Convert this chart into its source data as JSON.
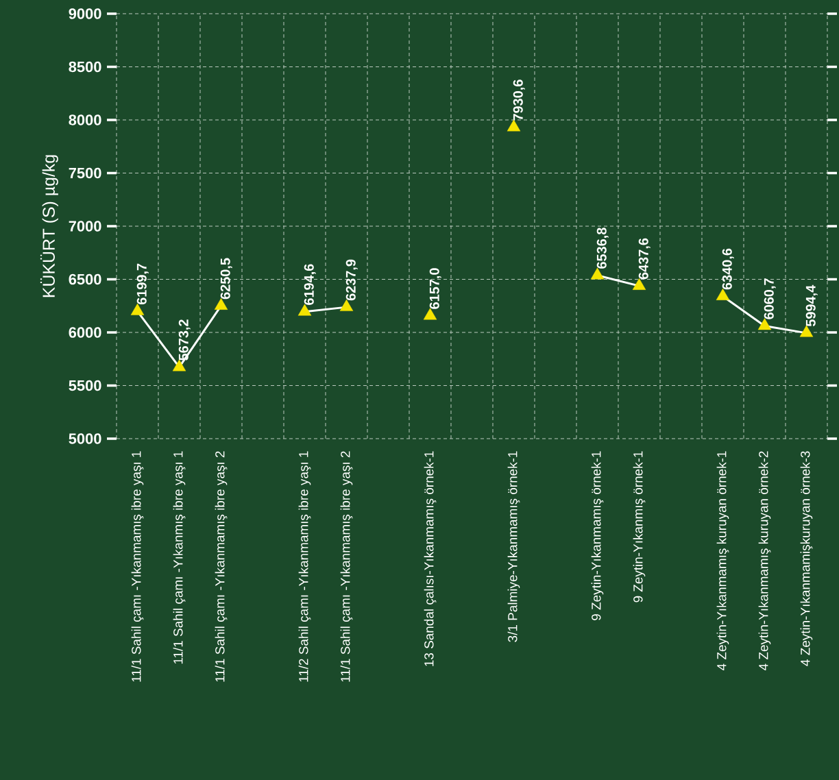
{
  "chart_data": {
    "type": "line",
    "ylabel": "KÜKÜRT (S) µg/kg",
    "categories": [
      "11/1 Sahil çamı -Yıkanmamış ibre yaşı 1",
      "11/1 Sahil çamı -Yıkanmış ibre yaşı 1",
      "11/1 Sahil çamı -Yıkanmamış ibre yaşı 2",
      null,
      "11/2 Sahil çamı -Yıkanmamış ibre yaşı 1",
      "11/1 Sahil çamı -Yıkanmamış ibre yaşı 2",
      null,
      "13 Sandal çalısı-Yıkanmamış örnek-1",
      null,
      "3/1 Palmiye-Yıkanmamış örnek-1",
      null,
      "9 Zeytin-Yıkanmamış örnek-1",
      "9 Zeytin-Yıkanmış örnek-1",
      null,
      "4 Zeytin-Yıkanmamış kuruyan örnek-1",
      "4 Zeytin-Yıkanmamış kuruyan örnek-2",
      "4 Zeytin-Yıkanmamişkuruyan örnek-3"
    ],
    "series": [
      {
        "color": "#ffffff",
        "values": [
          6199.7,
          5673.2,
          6250.5,
          null,
          6194.6,
          6237.9,
          null,
          6157.0,
          null,
          7930.6,
          null,
          6536.8,
          6437.6,
          null,
          6340.6,
          6060.7,
          5994.4
        ],
        "colors": [
          "#f5e400",
          "#f5e400",
          "#f5e400",
          null,
          "#f5e400",
          "#f5e400",
          null,
          "#f5e400",
          null,
          "#f5e400",
          null,
          "#f5e400",
          "#f5e400",
          null,
          "#f5e400",
          "#f5e400",
          "#f5e400"
        ],
        "value_labels": [
          "6199,7",
          "5673,2",
          "6250,5",
          null,
          "6194,6",
          "6237,9",
          null,
          "6157,0",
          null,
          "7930,6",
          null,
          "6536,8",
          "6437,6",
          null,
          "6340,6",
          "6060,7",
          "5994,4"
        ]
      }
    ],
    "ylim": [
      5000,
      9000
    ],
    "yticks": [
      5000,
      5500,
      6000,
      6500,
      7000,
      7500,
      8000,
      8500,
      9000
    ],
    "grid": true,
    "marker": "triangle"
  }
}
